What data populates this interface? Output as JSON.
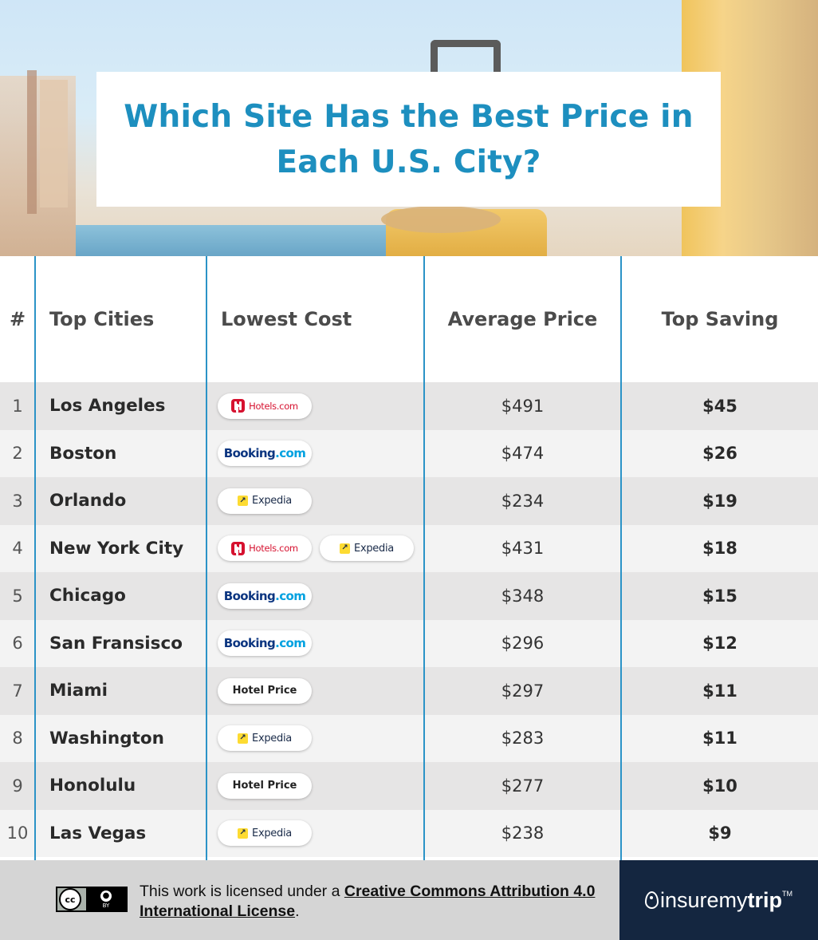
{
  "title": "Which Site Has the Best Price in Each U.S. City?",
  "colors": {
    "title": "#1d8fbf",
    "divider": "#2b93c7",
    "row_dark": "#e6e5e5",
    "row_light": "#f3f3f3",
    "footer_brand_bg": "#142640"
  },
  "table": {
    "headers": {
      "num": "#",
      "city": "Top Cities",
      "cost": "Lowest Cost",
      "avg": "Average Price",
      "save": "Top Saving"
    }
  },
  "chart_data": {
    "type": "table",
    "columns": [
      "#",
      "Top Cities",
      "Lowest Cost",
      "Average Price",
      "Top Saving"
    ],
    "rows": [
      {
        "rank": "1",
        "city": "Los Angeles",
        "sites": [
          "Hotels.com"
        ],
        "avg": "$491",
        "save": "$45"
      },
      {
        "rank": "2",
        "city": "Boston",
        "sites": [
          "Booking.com"
        ],
        "avg": "$474",
        "save": "$26"
      },
      {
        "rank": "3",
        "city": "Orlando",
        "sites": [
          "Expedia"
        ],
        "avg": "$234",
        "save": "$19"
      },
      {
        "rank": "4",
        "city": "New York City",
        "sites": [
          "Hotels.com",
          "Expedia"
        ],
        "avg": "$431",
        "save": "$18"
      },
      {
        "rank": "5",
        "city": "Chicago",
        "sites": [
          "Booking.com"
        ],
        "avg": "$348",
        "save": "$15"
      },
      {
        "rank": "6",
        "city": "San Fransisco",
        "sites": [
          "Booking.com"
        ],
        "avg": "$296",
        "save": "$12"
      },
      {
        "rank": "7",
        "city": "Miami",
        "sites": [
          "Hotel Price"
        ],
        "avg": "$297",
        "save": "$11"
      },
      {
        "rank": "8",
        "city": "Washington",
        "sites": [
          "Expedia"
        ],
        "avg": "$283",
        "save": "$11"
      },
      {
        "rank": "9",
        "city": "Honolulu",
        "sites": [
          "Hotel Price"
        ],
        "avg": "$277",
        "save": "$10"
      },
      {
        "rank": "10",
        "city": "Las Vegas",
        "sites": [
          "Expedia"
        ],
        "avg": "$238",
        "save": "$9"
      }
    ]
  },
  "footer": {
    "license_prefix": "This work is licensed under a ",
    "license_link": "Creative Commons Attribution 4.0 International License",
    "license_suffix": ".",
    "cc_logo_text": "cc",
    "cc_by_text": "BY",
    "brand_pre": "insuremy",
    "brand_bold": "trip",
    "brand_tm": "TM"
  }
}
